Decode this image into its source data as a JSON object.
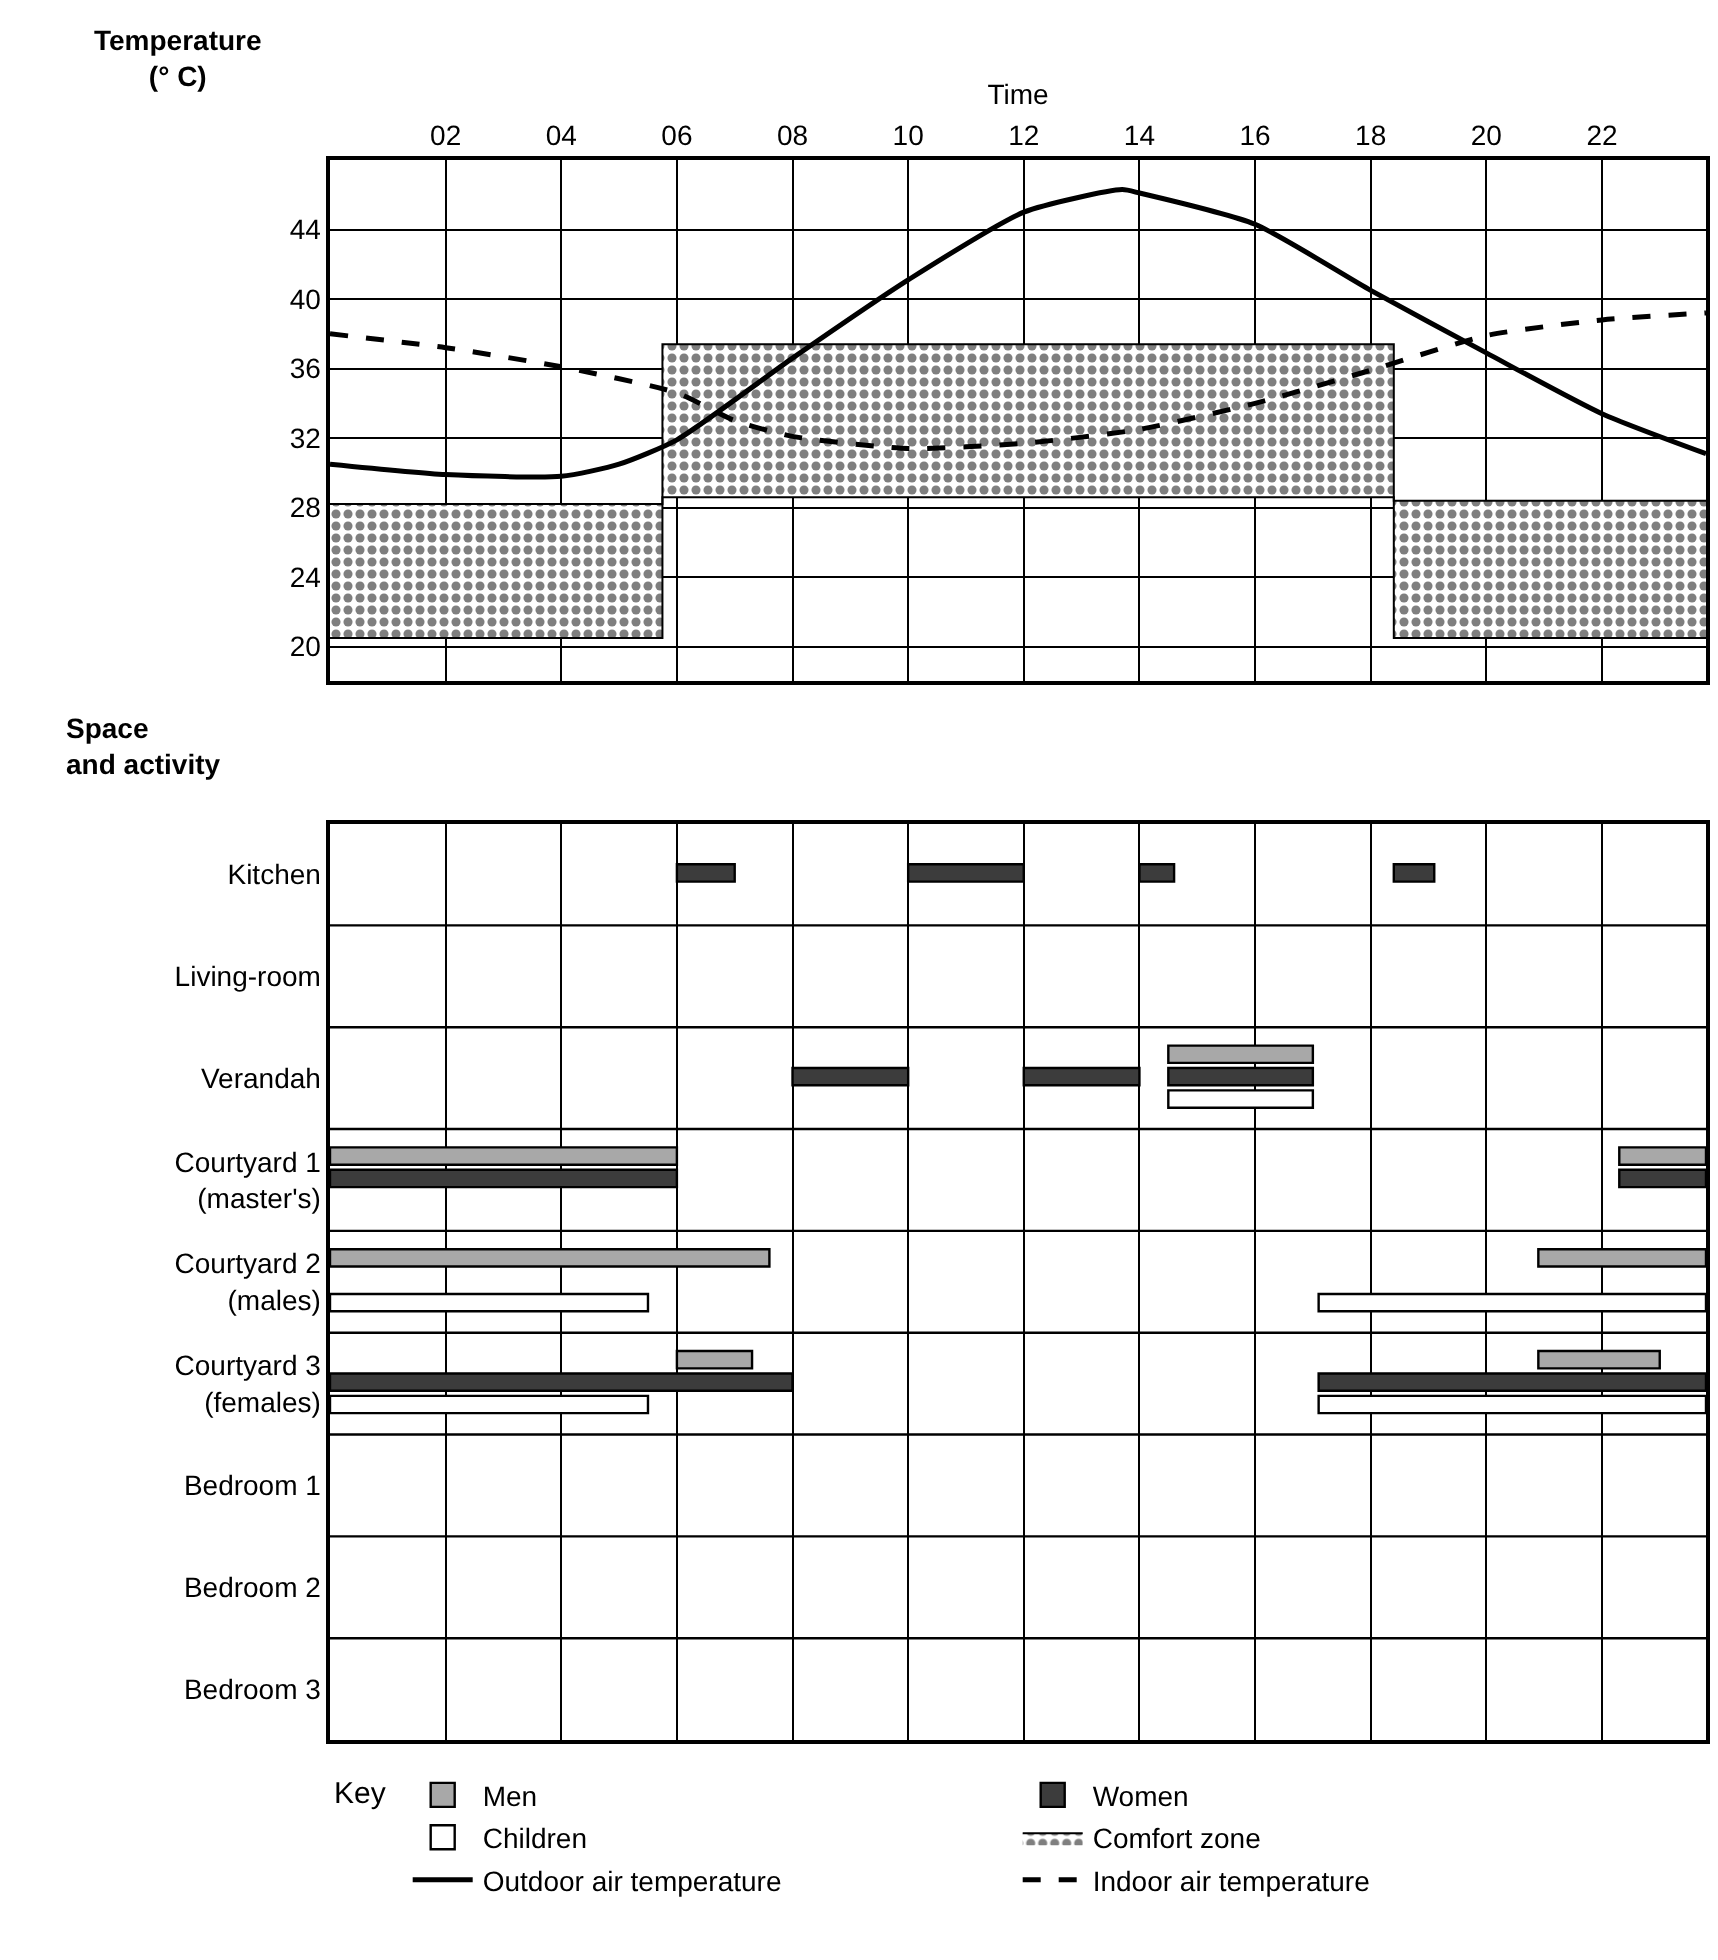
{
  "chart_data": [
    {
      "type": "line",
      "xlabel": "Time",
      "ylabel": "Temperature (° C)",
      "xlim": [
        0,
        23.8
      ],
      "ylim": [
        18,
        48
      ],
      "xticks": [
        {
          "value": 2,
          "label": "02"
        },
        {
          "value": 4,
          "label": "04"
        },
        {
          "value": 6,
          "label": "06"
        },
        {
          "value": 8,
          "label": "08"
        },
        10,
        12,
        14,
        16,
        18,
        20,
        22
      ],
      "yticks": [
        20,
        24,
        28,
        32,
        36,
        40,
        44
      ],
      "grid": true,
      "legend": "bottom",
      "series": [
        {
          "type": "line",
          "color": "#000000",
          "line_style": "solid",
          "x": [
            0,
            5.75,
            5.75,
            18.4,
            18.4,
            23.8
          ],
          "values": [
            20.5,
            20.5,
            28.6,
            28.6,
            20.5,
            20.5
          ]
        },
        {
          "name": "Comfort zone",
          "type": "area",
          "color": "#000000",
          "x": [
            0,
            5.75,
            5.75,
            18.4,
            18.4,
            23.8
          ],
          "values": [
            28.2,
            28.2,
            37.4,
            37.4,
            28.4,
            28.4
          ]
        },
        {
          "name": "Outdoor air temperature",
          "type": "line",
          "color": "#000000",
          "line_style": "solid",
          "x": [
            0,
            2,
            4,
            5,
            6,
            8,
            10,
            12,
            13.7,
            14,
            16,
            18,
            20,
            22,
            23.8
          ],
          "values": [
            30.5,
            29.9,
            29.8,
            30.5,
            31.9,
            36.6,
            41.1,
            45,
            46.3,
            46.1,
            44.3,
            40.5,
            36.9,
            33.4,
            31.1
          ]
        },
        {
          "name": "Indoor air temperature",
          "type": "line",
          "color": "#000000",
          "line_style": "dashed",
          "x": [
            0,
            2,
            4,
            6,
            7,
            8,
            10,
            12,
            14,
            16,
            18,
            20,
            22,
            23.8
          ],
          "values": [
            38.0,
            37.2,
            36.1,
            34.6,
            33,
            32.1,
            31.4,
            31.7,
            32.5,
            34,
            35.9,
            37.9,
            38.8,
            39.2
          ]
        }
      ]
    },
    {
      "type": "bar",
      "orientation": "horizontal",
      "ylabel": "Space and activity",
      "legend": "bottom",
      "legend_title": "Key",
      "tick_labels": "y",
      "grid": "x",
      "xlim": [
        0,
        23.8
      ],
      "xticks": [
        {
          "value": 2,
          "label": null
        },
        {
          "value": 4,
          "label": null
        },
        {
          "value": 6,
          "label": null
        },
        {
          "value": 8,
          "label": null
        },
        {
          "value": 10,
          "label": null
        },
        {
          "value": 12,
          "label": null
        },
        {
          "value": 14,
          "label": null
        },
        {
          "value": 16,
          "label": null
        },
        {
          "value": 18,
          "label": null
        },
        {
          "value": 20,
          "label": null
        },
        {
          "value": 22,
          "label": null
        }
      ],
      "categories": [
        "Kitchen",
        "Living-room",
        "Verandah",
        "Courtyard 1 (master's)",
        "Courtyard 2 (males)",
        "Courtyard 3 (females)",
        "Bedroom 1",
        "Bedroom 2",
        "Bedroom 3"
      ],
      "series": [
        {
          "name": "Men",
          "color": "#a8a8a8",
          "base": [
            null,
            null,
            14.5,
            0,
            0,
            6,
            null,
            null,
            null
          ],
          "values": [
            null,
            null,
            2.5,
            6,
            7.6,
            1.3,
            null,
            null,
            null
          ]
        },
        {
          "name": "Women",
          "color": "#3c3c3c",
          "base": [
            6,
            null,
            8,
            0,
            null,
            0,
            null,
            null,
            null
          ],
          "values": [
            1,
            null,
            2,
            6,
            null,
            8,
            null,
            null,
            null
          ]
        },
        {
          "name": "Children",
          "color": "#ffffff",
          "base": [
            null,
            null,
            14.5,
            null,
            0,
            0,
            null,
            null,
            null
          ],
          "values": [
            null,
            null,
            2.5,
            null,
            5.5,
            5.5,
            null,
            null,
            null
          ]
        },
        {
          "color": "#a8a8a8",
          "base": [
            null,
            null,
            null,
            22.3,
            20.9,
            20.9,
            null,
            null,
            null
          ],
          "values": [
            null,
            null,
            null,
            1.5,
            2.9,
            2.1,
            null,
            null,
            null
          ]
        },
        {
          "color": "#3c3c3c",
          "base": [
            10,
            null,
            12,
            22.3,
            null,
            17.1,
            null,
            null,
            null
          ],
          "values": [
            2,
            null,
            2,
            1.5,
            null,
            6.7,
            null,
            null,
            null
          ]
        },
        {
          "color": "#3c3c3c",
          "base": [
            14,
            null,
            14.5,
            null,
            null,
            null,
            null,
            null,
            null
          ],
          "values": [
            0.6,
            null,
            2.5,
            null,
            null,
            null,
            null,
            null,
            null
          ]
        },
        {
          "color": "#3c3c3c",
          "base": [
            18.4,
            null,
            null,
            null,
            null,
            null,
            null,
            null,
            null
          ],
          "values": [
            0.7,
            null,
            null,
            null,
            null,
            null,
            null,
            null,
            null
          ]
        },
        {
          "color": "#ffffff",
          "base": [
            null,
            null,
            null,
            null,
            17.1,
            17.1,
            null,
            null,
            null
          ],
          "values": [
            null,
            null,
            null,
            null,
            6.7,
            6.7,
            null,
            null,
            null
          ]
        }
      ]
    }
  ]
}
